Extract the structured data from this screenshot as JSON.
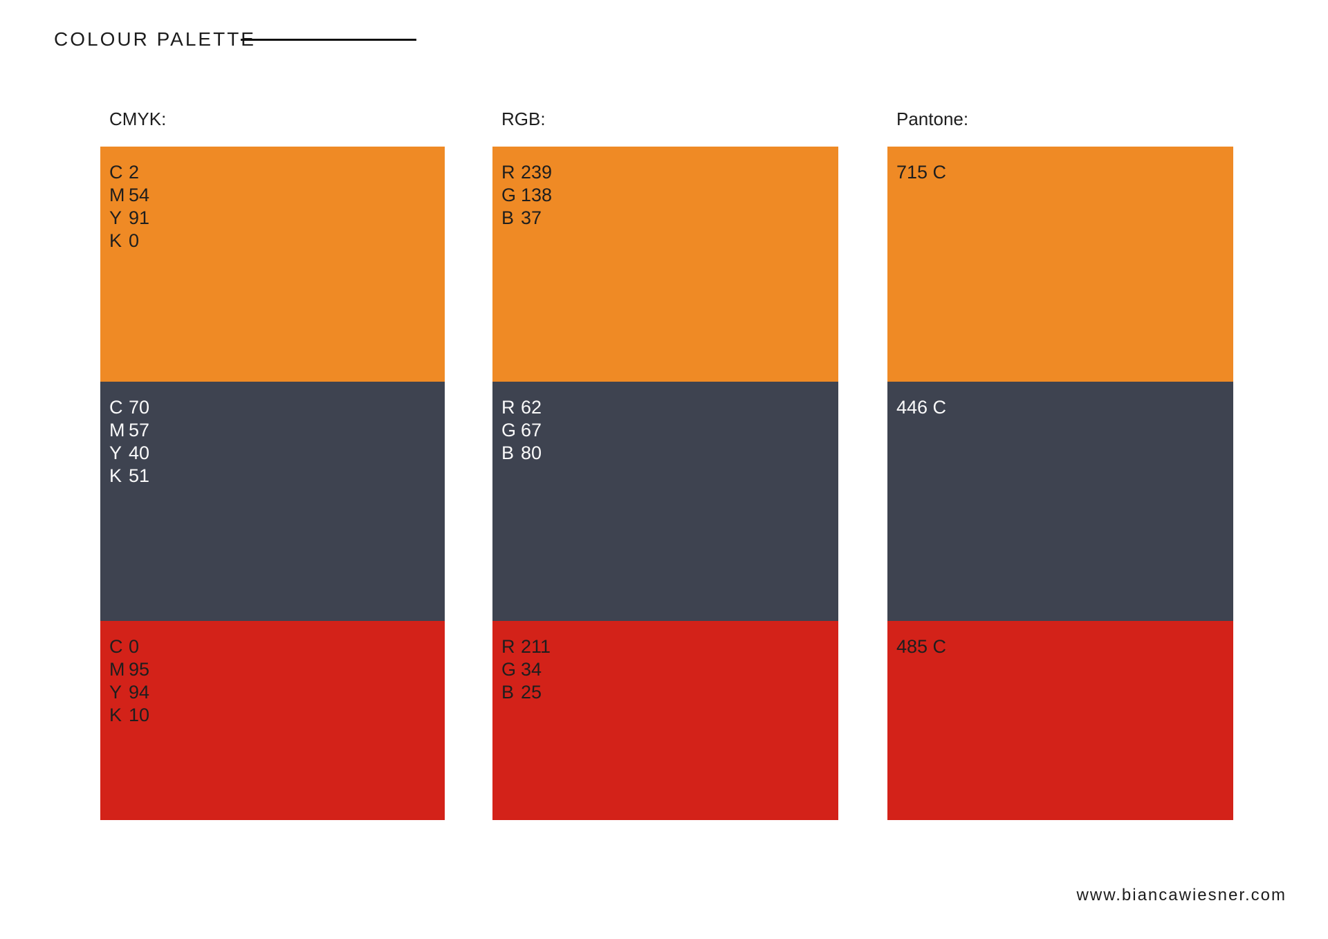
{
  "title": "COLOUR PALETTE",
  "footer": "www.biancawiesner.com",
  "brand_colors": {
    "orange_hex": "#EF8A25",
    "slate_hex": "#3E4350",
    "red_hex": "#D32219"
  },
  "columns": {
    "cmyk": {
      "header": "CMYK:",
      "orange": {
        "lines": [
          {
            "k": "C",
            "v": "2"
          },
          {
            "k": "M",
            "v": "54"
          },
          {
            "k": "Y",
            "v": "91"
          },
          {
            "k": "K",
            "v": "0"
          }
        ]
      },
      "slate": {
        "lines": [
          {
            "k": "C",
            "v": "70"
          },
          {
            "k": "M",
            "v": "57"
          },
          {
            "k": "Y",
            "v": "40"
          },
          {
            "k": "K",
            "v": "51"
          }
        ]
      },
      "red": {
        "lines": [
          {
            "k": "C",
            "v": "0"
          },
          {
            "k": "M",
            "v": "95"
          },
          {
            "k": "Y",
            "v": "94"
          },
          {
            "k": "K",
            "v": "10"
          }
        ]
      }
    },
    "rgb": {
      "header": "RGB:",
      "orange": {
        "lines": [
          {
            "k": "R",
            "v": "239"
          },
          {
            "k": "G",
            "v": "138"
          },
          {
            "k": "B",
            "v": "37"
          }
        ]
      },
      "slate": {
        "lines": [
          {
            "k": "R",
            "v": "62"
          },
          {
            "k": "G",
            "v": "67"
          },
          {
            "k": "B",
            "v": "80"
          }
        ]
      },
      "red": {
        "lines": [
          {
            "k": "R",
            "v": "211"
          },
          {
            "k": "G",
            "v": "34"
          },
          {
            "k": "B",
            "v": "25"
          }
        ]
      }
    },
    "pantone": {
      "header": "Pantone:",
      "orange": {
        "code": "715 C"
      },
      "slate": {
        "code": "446 C"
      },
      "red": {
        "code": "485 C"
      }
    }
  }
}
